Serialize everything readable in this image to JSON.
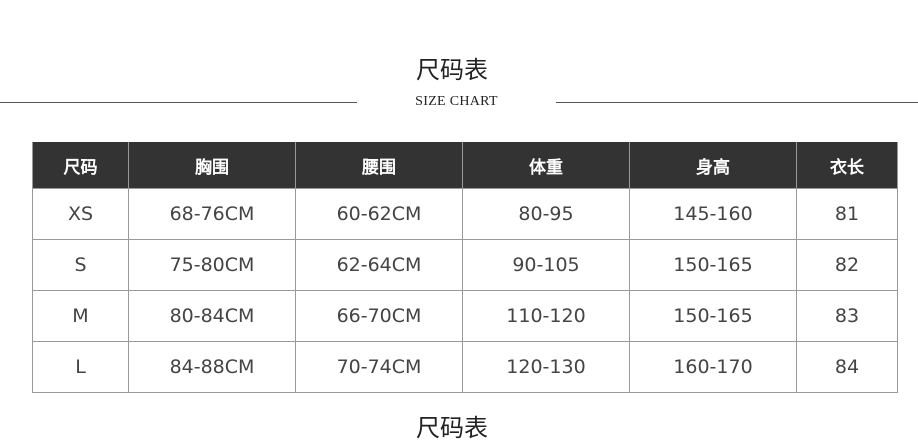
{
  "header": {
    "title": "尺码表",
    "subtitle": "SIZE CHART"
  },
  "table": {
    "columns": [
      "尺码",
      "胸围",
      "腰围",
      "体重",
      "身高",
      "衣长"
    ],
    "rows": [
      [
        "XS",
        "68-76CM",
        "60-62CM",
        "80-95",
        "145-160",
        "81"
      ],
      [
        "S",
        "75-80CM",
        "62-64CM",
        "90-105",
        "150-165",
        "82"
      ],
      [
        "M",
        "80-84CM",
        "66-70CM",
        "110-120",
        "150-165",
        "83"
      ],
      [
        "L",
        "84-88CM",
        "70-74CM",
        "120-130",
        "160-170",
        "84"
      ]
    ]
  },
  "footer": {
    "title": "尺码表"
  }
}
